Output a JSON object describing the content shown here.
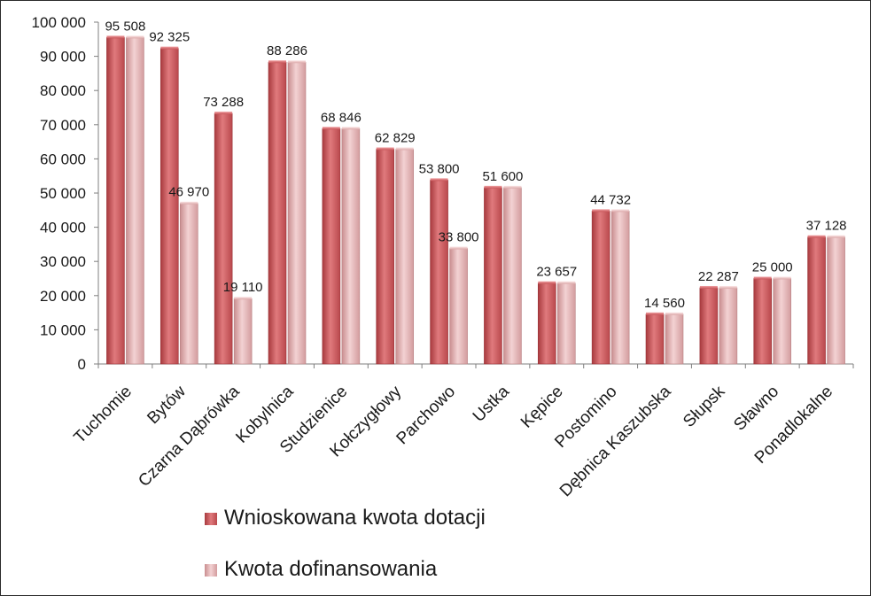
{
  "chart_data": {
    "type": "bar",
    "categories": [
      "Tuchomie",
      "Bytów",
      "Czarna Dąbrówka",
      "Kobylnica",
      "Studzienice",
      "Kołczygłowy",
      "Parchowo",
      "Ustka",
      "Kępice",
      "Postomino",
      "Dębnica Kaszubska",
      "Słupsk",
      "Sławno",
      "Ponadlokalne"
    ],
    "series": [
      {
        "name": "Wnioskowana kwota dotacji",
        "color": "#cf5a5e",
        "values": [
          95508,
          92325,
          73288,
          88286,
          68846,
          62829,
          53800,
          51600,
          23657,
          44732,
          14560,
          22287,
          25000,
          37128
        ]
      },
      {
        "name": "Kwota dofinansowania",
        "color": "#e3aaab",
        "values": [
          95508,
          46970,
          19110,
          88286,
          68846,
          62829,
          33800,
          51600,
          23657,
          44732,
          14560,
          22287,
          25000,
          37128
        ]
      }
    ],
    "data_labels": [
      "95 508",
      "92 325",
      "46 970",
      "73 288",
      "19 110",
      "88 286",
      "68 846",
      "62 829",
      "53 800",
      "33 800",
      "51 600",
      "23 657",
      "44 732",
      "14 560",
      "22 287",
      "25 000",
      "37 128"
    ],
    "y_ticks": [
      0,
      10000,
      20000,
      30000,
      40000,
      50000,
      60000,
      70000,
      80000,
      90000,
      100000
    ],
    "y_tick_labels": [
      "0",
      "10 000",
      "20 000",
      "30 000",
      "40 000",
      "50 000",
      "60 000",
      "70 000",
      "80 000",
      "90 000",
      "100 000"
    ],
    "ylim": [
      0,
      100000
    ],
    "grid": false,
    "legend_position": "bottom"
  },
  "legend": {
    "items": [
      {
        "label": "Wnioskowana kwota dotacji",
        "color": "#cf5a5e"
      },
      {
        "label": "Kwota dofinansowania",
        "color": "#e3aaab"
      }
    ]
  }
}
